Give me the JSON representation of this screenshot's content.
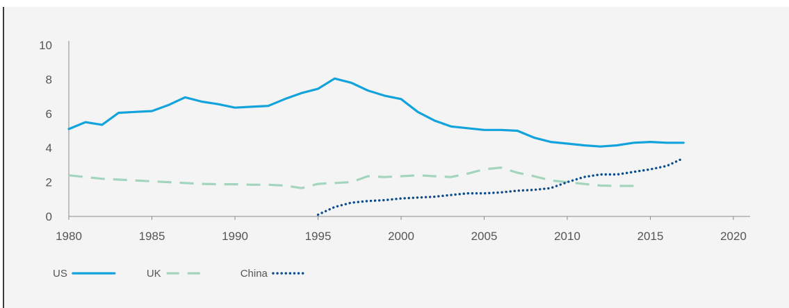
{
  "chart_data": {
    "type": "line",
    "title": "",
    "xlabel": "",
    "ylabel": "",
    "xlim": [
      1980,
      2020
    ],
    "ylim": [
      0,
      10
    ],
    "x_ticks": [
      1980,
      1985,
      1990,
      1995,
      2000,
      2005,
      2010,
      2015,
      2020
    ],
    "y_ticks": [
      0,
      2,
      4,
      6,
      8,
      10
    ],
    "x_tick_labels": [
      "1980",
      "1985",
      "1990",
      "1995",
      "2000",
      "2005",
      "2010",
      "2015",
      "2020"
    ],
    "y_tick_labels": [
      "0",
      "2",
      "4",
      "6",
      "8",
      "10"
    ],
    "grid": false,
    "legend_position": "bottom-left",
    "series": [
      {
        "name": "US",
        "color": "#12a3dc",
        "style": "solid",
        "x": [
          1980,
          1981,
          1982,
          1983,
          1984,
          1985,
          1986,
          1987,
          1988,
          1989,
          1990,
          1991,
          1992,
          1993,
          1994,
          1995,
          1996,
          1997,
          1998,
          1999,
          2000,
          2001,
          2002,
          2003,
          2004,
          2005,
          2006,
          2007,
          2008,
          2009,
          2010,
          2011,
          2012,
          2013,
          2014,
          2015,
          2016,
          2017
        ],
        "y": [
          5.1,
          5.5,
          5.35,
          6.05,
          6.1,
          6.15,
          6.5,
          6.95,
          6.7,
          6.55,
          6.35,
          6.4,
          6.45,
          6.85,
          7.2,
          7.45,
          8.05,
          7.8,
          7.35,
          7.05,
          6.85,
          6.1,
          5.6,
          5.25,
          5.15,
          5.05,
          5.05,
          5.0,
          4.6,
          4.35,
          4.25,
          4.15,
          4.08,
          4.15,
          4.3,
          4.35,
          4.3,
          4.3
        ]
      },
      {
        "name": "UK",
        "color": "#a3d5bd",
        "style": "dashed",
        "x": [
          1980,
          1981,
          1982,
          1983,
          1984,
          1985,
          1986,
          1987,
          1988,
          1989,
          1990,
          1991,
          1992,
          1993,
          1994,
          1995,
          1996,
          1997,
          1998,
          1999,
          2000,
          2001,
          2002,
          2003,
          2004,
          2005,
          2006,
          2007,
          2008,
          2009,
          2010,
          2011,
          2012,
          2013,
          2014
        ],
        "y": [
          2.4,
          2.3,
          2.2,
          2.15,
          2.1,
          2.05,
          2.0,
          1.95,
          1.9,
          1.88,
          1.88,
          1.85,
          1.85,
          1.8,
          1.65,
          1.9,
          1.95,
          2.0,
          2.35,
          2.3,
          2.35,
          2.4,
          2.35,
          2.3,
          2.5,
          2.75,
          2.85,
          2.55,
          2.35,
          2.1,
          2.0,
          1.9,
          1.8,
          1.78,
          1.78
        ]
      },
      {
        "name": "China",
        "color": "#0c4c8a",
        "style": "dotted",
        "x": [
          1995,
          1996,
          1997,
          1998,
          1999,
          2000,
          2001,
          2002,
          2003,
          2004,
          2005,
          2006,
          2007,
          2008,
          2009,
          2010,
          2011,
          2012,
          2013,
          2014,
          2015,
          2016,
          2017
        ],
        "y": [
          0.1,
          0.55,
          0.8,
          0.9,
          0.95,
          1.05,
          1.1,
          1.15,
          1.25,
          1.35,
          1.35,
          1.4,
          1.5,
          1.55,
          1.65,
          2.0,
          2.3,
          2.45,
          2.45,
          2.6,
          2.75,
          2.95,
          3.4
        ]
      }
    ]
  }
}
